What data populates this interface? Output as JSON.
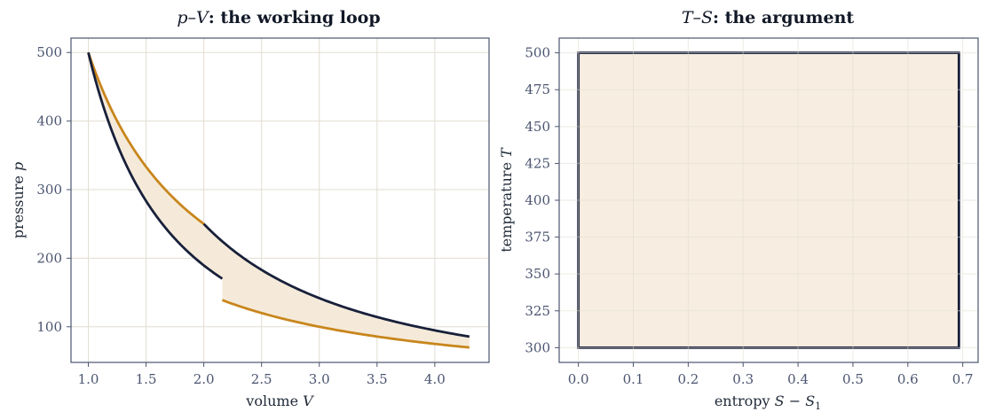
{
  "colors": {
    "hot": "#c8861c",
    "cold": "#18203a",
    "fill": "#f5ead9"
  },
  "chart_data": [
    {
      "type": "line",
      "title_math": "p–V",
      "title_rest": ": the working loop",
      "xlabel_text": "volume ",
      "xlabel_math": "V",
      "ylabel_text": "pressure ",
      "ylabel_math": "p",
      "xlim": [
        0.85,
        4.47
      ],
      "ylim": [
        48,
        521
      ],
      "xticks": [
        1.0,
        1.5,
        2.0,
        2.5,
        3.0,
        3.5,
        4.0
      ],
      "xtick_labels": [
        "1.0",
        "1.5",
        "2.0",
        "2.5",
        "3.0",
        "3.5",
        "4.0"
      ],
      "yticks": [
        100,
        200,
        300,
        400,
        500
      ],
      "ytick_labels": [
        "100",
        "200",
        "300",
        "400",
        "500"
      ],
      "series": [
        {
          "kind": "isotherm-hot",
          "x_range": [
            1.0,
            2.0
          ],
          "p_const": 500,
          "exp": 1
        },
        {
          "kind": "adiabat",
          "x_range": [
            2.0,
            4.3
          ],
          "p_start": 250,
          "v_start": 2.0,
          "gamma": 1.4
        },
        {
          "kind": "isotherm-cold",
          "x_range": [
            2.16,
            4.3
          ],
          "p_const": 300,
          "exp": 1
        },
        {
          "kind": "adiabat",
          "x_range": [
            1.0,
            2.16
          ],
          "p_start": 500,
          "v_start": 1.0,
          "gamma": 1.4
        }
      ]
    },
    {
      "type": "area",
      "title_math": "T–S",
      "title_rest": ": the argument",
      "xlabel_text": "entropy ",
      "xlabel_math": "S − S",
      "xlabel_sub": "1",
      "ylabel_text": "temperature ",
      "ylabel_math": "T",
      "xlim": [
        -0.035,
        0.728
      ],
      "ylim": [
        290,
        510
      ],
      "xticks": [
        0.0,
        0.1,
        0.2,
        0.3,
        0.4,
        0.5,
        0.6,
        0.7
      ],
      "xtick_labels": [
        "0.0",
        "0.1",
        "0.2",
        "0.3",
        "0.4",
        "0.5",
        "0.6",
        "0.7"
      ],
      "yticks": [
        300,
        325,
        350,
        375,
        400,
        425,
        450,
        475,
        500
      ],
      "ytick_labels": [
        "300",
        "325",
        "350",
        "375",
        "400",
        "425",
        "450",
        "475",
        "500"
      ],
      "rect": {
        "s": [
          0.0,
          0.693
        ],
        "T": [
          300,
          500
        ]
      }
    }
  ]
}
